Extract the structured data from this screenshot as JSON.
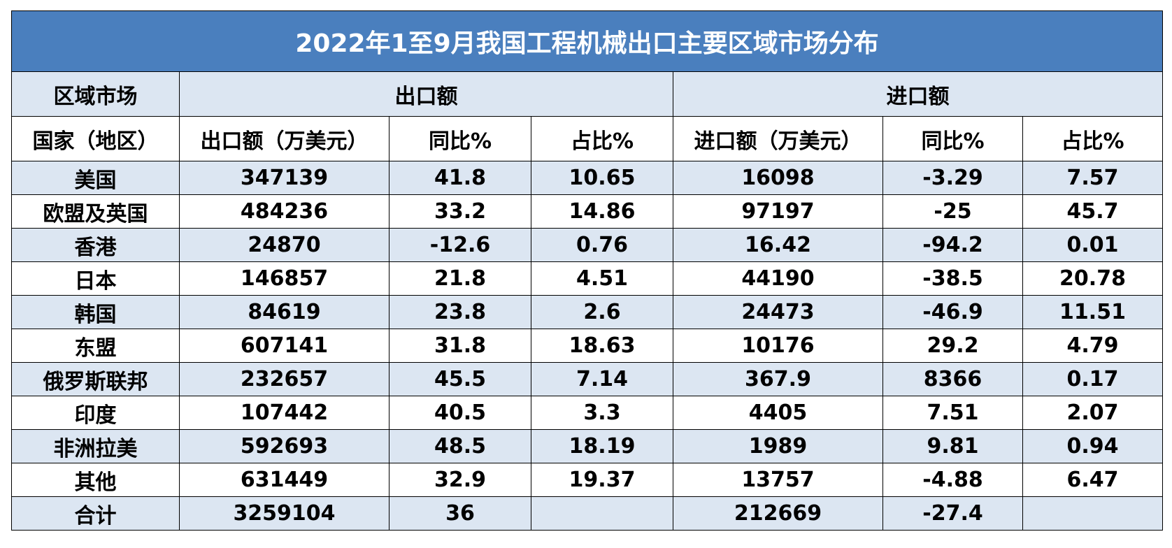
{
  "title": "2022年1至9月我国工程机械出口主要区域市场分布",
  "header_row1": {
    "region_market": "区域市场",
    "export_group": "出口额",
    "import_group": "进口额"
  },
  "header_row2": {
    "country": "国家（地区）",
    "export_amount": "出口额（万美元）",
    "export_yoy": "同比%",
    "export_share": "占比%",
    "import_amount": "进口额（万美元）",
    "import_yoy": "同比%",
    "import_share": "占比%"
  },
  "rows": [
    [
      "美国",
      "347139",
      "41.8",
      "10.65",
      "16098",
      "-3.29",
      "7.57"
    ],
    [
      "欧盟及英国",
      "484236",
      "33.2",
      "14.86",
      "97197",
      "-25",
      "45.7"
    ],
    [
      "香港",
      "24870",
      "-12.6",
      "0.76",
      "16.42",
      "-94.2",
      "0.01"
    ],
    [
      "日本",
      "146857",
      "21.8",
      "4.51",
      "44190",
      "-38.5",
      "20.78"
    ],
    [
      "韩国",
      "84619",
      "23.8",
      "2.6",
      "24473",
      "-46.9",
      "11.51"
    ],
    [
      "东盟",
      "607141",
      "31.8",
      "18.63",
      "10176",
      "29.2",
      "4.79"
    ],
    [
      "俄罗斯联邦",
      "232657",
      "45.5",
      "7.14",
      "367.9",
      "8366",
      "0.17"
    ],
    [
      "印度",
      "107442",
      "40.5",
      "3.3",
      "4405",
      "7.51",
      "2.07"
    ],
    [
      "非洲拉美",
      "592693",
      "48.5",
      "18.19",
      "1989",
      "9.81",
      "0.94"
    ],
    [
      "其他",
      "631449",
      "32.9",
      "19.37",
      "13757",
      "-4.88",
      "6.47"
    ],
    [
      "合计",
      "3259104",
      "36",
      "",
      "212669",
      "-27.4",
      ""
    ]
  ],
  "colors": {
    "title_bg": "#4a7fbe",
    "band_bg": "#dce6f2",
    "border": "#000000"
  }
}
